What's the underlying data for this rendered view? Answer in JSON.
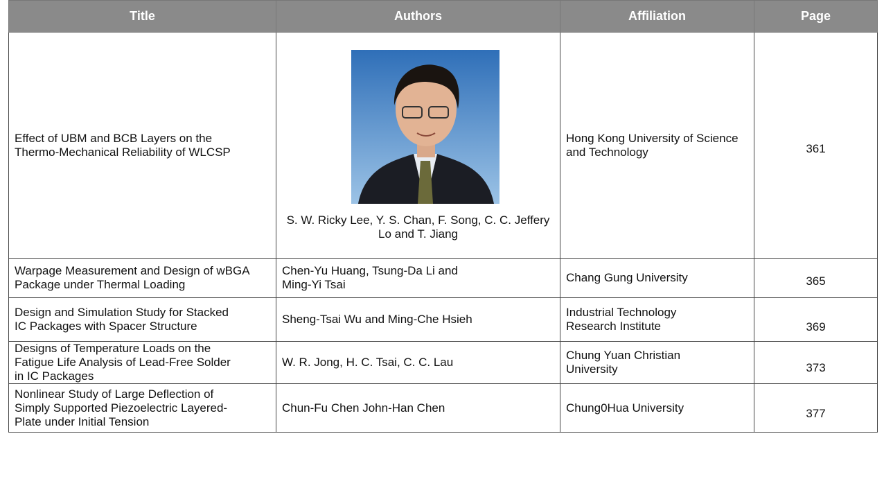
{
  "table": {
    "header": [
      "Title",
      "Authors",
      "Affiliation",
      "Page"
    ],
    "rows": [
      [
        "Effect of UBM and BCB Layers on the Thermo-Mechanical Reliability of WLCSP",
        "S. W. Ricky Lee, Y. S. Chan, F. Song, C. C. Jeffery Lo and T. Jiang",
        "Hong Kong University of Science and Technology",
        361
      ],
      [
        "Warpage Measurement and Design of wBGA Package under Thermal Loading",
        "Chen-Yu Huang, Tsung-Da Li and Ming-Yi Tsai",
        "Chang Gung University",
        365
      ],
      [
        "Design and Simulation Study for Stacked IC Packages with Spacer Structure",
        "Sheng-Tsai Wu and Ming-Che Hsieh",
        "Industrial Technology Research Institute",
        369
      ],
      [
        "Designs of Temperature Loads on the Fatigue Life Analysis of Lead-Free Solder in IC Packages",
        "W. R. Jong, H. C. Tsai, C. C. Lau",
        "Chung Yuan Christian University",
        373
      ],
      [
        "Nonlinear Study of Large Deflection of Simply Supported Piezoelectric Layered-Plate under Initial Tension",
        "Chun-Fu Chen John-Han Chen",
        "Chung0Hua University",
        377
      ]
    ]
  }
}
